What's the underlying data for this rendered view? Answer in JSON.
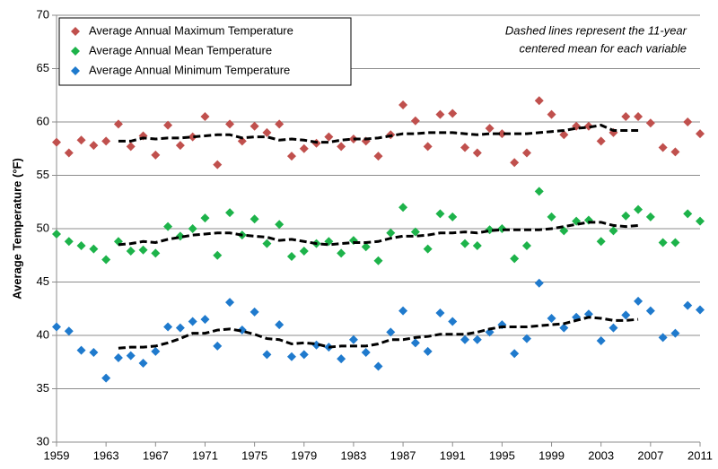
{
  "chart_data": {
    "type": "scatter",
    "ylabel": "Average Temperature (°F)",
    "annotation": [
      "Dashed lines represent the 11-year",
      "centered mean for each variable"
    ],
    "x": [
      1959,
      1960,
      1961,
      1962,
      1963,
      1964,
      1965,
      1966,
      1967,
      1968,
      1969,
      1970,
      1971,
      1972,
      1973,
      1974,
      1975,
      1976,
      1977,
      1978,
      1979,
      1980,
      1981,
      1982,
      1983,
      1984,
      1985,
      1986,
      1987,
      1988,
      1989,
      1990,
      1991,
      1992,
      1993,
      1994,
      1995,
      1996,
      1997,
      1998,
      1999,
      2000,
      2001,
      2002,
      2003,
      2004,
      2005,
      2006,
      2007,
      2008,
      2009,
      2010,
      2011
    ],
    "series": [
      {
        "name": "Average Annual Maximum Temperature",
        "color": "#c0504d",
        "values": [
          58.1,
          57.1,
          58.3,
          57.8,
          58.2,
          59.8,
          57.7,
          58.7,
          56.9,
          59.7,
          57.8,
          58.6,
          60.5,
          56.0,
          59.8,
          58.2,
          59.6,
          59.0,
          59.8,
          56.8,
          57.5,
          58.0,
          58.6,
          57.7,
          58.4,
          58.2,
          56.8,
          58.8,
          61.6,
          60.1,
          57.7,
          60.7,
          60.8,
          57.6,
          57.1,
          59.4,
          58.9,
          56.2,
          57.1,
          62.0,
          60.7,
          58.8,
          59.6,
          59.6,
          58.2,
          59.0,
          60.5,
          60.5,
          59.9,
          57.6,
          57.2,
          60.0,
          58.9
        ]
      },
      {
        "name": "Average Annual Mean Temperature",
        "color": "#1db34a",
        "values": [
          49.5,
          48.8,
          48.4,
          48.1,
          47.1,
          48.8,
          47.9,
          48.0,
          47.7,
          50.2,
          49.3,
          50.0,
          51.0,
          47.5,
          51.5,
          49.4,
          50.9,
          48.6,
          50.4,
          47.4,
          47.9,
          48.6,
          48.8,
          47.7,
          48.9,
          48.3,
          47.0,
          49.6,
          52.0,
          49.7,
          48.1,
          51.4,
          51.1,
          48.6,
          48.4,
          49.9,
          50.0,
          47.2,
          48.4,
          53.5,
          51.1,
          49.8,
          50.7,
          50.8,
          48.8,
          49.8,
          51.2,
          51.8,
          51.1,
          48.7,
          48.7,
          51.4,
          50.7
        ]
      },
      {
        "name": "Average Annual Minimum Temperature",
        "color": "#1f7acd",
        "values": [
          40.8,
          40.4,
          38.6,
          38.4,
          36.0,
          37.9,
          38.1,
          37.4,
          38.5,
          40.8,
          40.7,
          41.3,
          41.5,
          39.0,
          43.1,
          40.5,
          42.2,
          38.2,
          41.0,
          38.0,
          38.2,
          39.1,
          38.9,
          37.8,
          39.6,
          38.4,
          37.1,
          40.3,
          42.3,
          39.3,
          38.5,
          42.1,
          41.3,
          39.6,
          39.6,
          40.3,
          41.0,
          38.3,
          39.7,
          44.9,
          41.6,
          40.7,
          41.7,
          42.0,
          39.5,
          40.7,
          41.9,
          43.2,
          42.3,
          39.8,
          40.2,
          42.8,
          42.4
        ]
      }
    ],
    "trend_lines": [
      {
        "color": "#000000",
        "dashed": true,
        "x": [
          1964,
          1965,
          1966,
          1967,
          1968,
          1969,
          1970,
          1971,
          1972,
          1973,
          1974,
          1975,
          1976,
          1977,
          1978,
          1979,
          1980,
          1981,
          1982,
          1983,
          1984,
          1985,
          1986,
          1987,
          1988,
          1989,
          1990,
          1991,
          1992,
          1993,
          1994,
          1995,
          1996,
          1997,
          1998,
          1999,
          2000,
          2001,
          2002,
          2003,
          2004,
          2005,
          2006
        ],
        "values": [
          58.2,
          58.2,
          58.5,
          58.4,
          58.5,
          58.5,
          58.6,
          58.7,
          58.8,
          58.8,
          58.5,
          58.6,
          58.6,
          58.3,
          58.4,
          58.3,
          58.1,
          58.1,
          58.3,
          58.4,
          58.4,
          58.5,
          58.7,
          58.9,
          58.9,
          59.0,
          59.0,
          59.0,
          58.9,
          58.8,
          58.9,
          58.9,
          58.9,
          58.9,
          59.0,
          59.1,
          59.2,
          59.4,
          59.5,
          59.7,
          59.2,
          59.2,
          59.2
        ]
      },
      {
        "color": "#000000",
        "dashed": true,
        "x": [
          1964,
          1965,
          1966,
          1967,
          1968,
          1969,
          1970,
          1971,
          1972,
          1973,
          1974,
          1975,
          1976,
          1977,
          1978,
          1979,
          1980,
          1981,
          1982,
          1983,
          1984,
          1985,
          1986,
          1987,
          1988,
          1989,
          1990,
          1991,
          1992,
          1993,
          1994,
          1995,
          1996,
          1997,
          1998,
          1999,
          2000,
          2001,
          2002,
          2003,
          2004,
          2005,
          2006
        ],
        "values": [
          48.5,
          48.6,
          48.8,
          48.7,
          49.0,
          49.2,
          49.4,
          49.5,
          49.6,
          49.6,
          49.4,
          49.3,
          49.2,
          48.9,
          49.0,
          48.8,
          48.6,
          48.5,
          48.6,
          48.7,
          48.7,
          48.8,
          49.1,
          49.3,
          49.3,
          49.4,
          49.6,
          49.6,
          49.7,
          49.6,
          49.8,
          49.9,
          49.9,
          49.9,
          49.9,
          50.0,
          50.2,
          50.4,
          50.6,
          50.6,
          50.3,
          50.2,
          50.3
        ]
      },
      {
        "color": "#000000",
        "dashed": true,
        "x": [
          1964,
          1965,
          1966,
          1967,
          1968,
          1969,
          1970,
          1971,
          1972,
          1973,
          1974,
          1975,
          1976,
          1977,
          1978,
          1979,
          1980,
          1981,
          1982,
          1983,
          1984,
          1985,
          1986,
          1987,
          1988,
          1989,
          1990,
          1991,
          1992,
          1993,
          1994,
          1995,
          1996,
          1997,
          1998,
          1999,
          2000,
          2001,
          2002,
          2003,
          2004,
          2005,
          2006
        ],
        "values": [
          38.8,
          38.9,
          38.9,
          39.0,
          39.3,
          39.7,
          40.2,
          40.2,
          40.5,
          40.6,
          40.4,
          40.1,
          39.7,
          39.6,
          39.2,
          39.3,
          39.2,
          38.9,
          39.0,
          39.0,
          39.0,
          39.2,
          39.6,
          39.6,
          39.8,
          39.9,
          40.1,
          40.1,
          40.1,
          40.3,
          40.6,
          40.8,
          40.8,
          40.8,
          40.9,
          41.0,
          41.1,
          41.4,
          41.7,
          41.6,
          41.4,
          41.4,
          41.5
        ]
      }
    ],
    "xlim": [
      1959,
      2011
    ],
    "xticks": [
      1959,
      1963,
      1967,
      1971,
      1975,
      1979,
      1983,
      1987,
      1991,
      1995,
      1999,
      2003,
      2007,
      2011
    ],
    "ylim": [
      30,
      70
    ],
    "yticks": [
      30,
      35,
      40,
      45,
      50,
      55,
      60,
      65,
      70
    ],
    "grid": true,
    "legend": "top-left"
  }
}
